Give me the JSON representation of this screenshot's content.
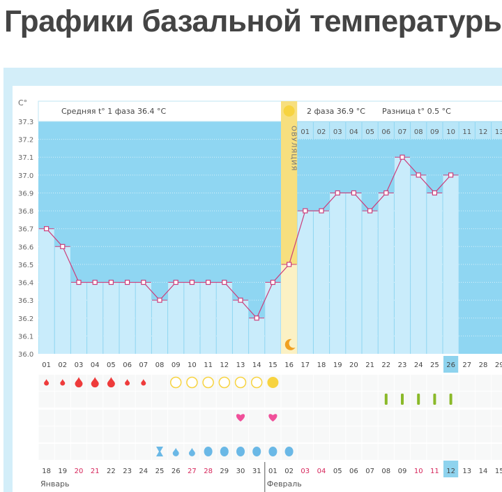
{
  "page_title": "Графики базальной температуры",
  "chart_data": {
    "type": "bar",
    "ylabel": "C°",
    "ylim": [
      36.0,
      37.3
    ],
    "yticks": [
      "37.3",
      "37.2",
      "37.1",
      "37.0",
      "36.9",
      "36.8",
      "36.7",
      "36.6",
      "36.5",
      "36.4",
      "36.3",
      "36.2",
      "36.1",
      "36.0"
    ],
    "grid": true,
    "cycle_days": [
      "01",
      "02",
      "03",
      "04",
      "05",
      "06",
      "07",
      "08",
      "09",
      "10",
      "11",
      "12",
      "13",
      "14",
      "15",
      "16",
      "17",
      "18",
      "19",
      "20",
      "21",
      "22",
      "23",
      "24",
      "25",
      "26",
      "27",
      "28",
      "29"
    ],
    "current_cycle_day": 26,
    "temperatures": [
      36.7,
      36.6,
      36.4,
      36.4,
      36.4,
      36.4,
      36.4,
      36.3,
      36.4,
      36.4,
      36.4,
      36.4,
      36.3,
      36.2,
      36.4,
      36.5,
      36.8,
      36.8,
      36.9,
      36.9,
      36.8,
      36.9,
      37.1,
      37.0,
      36.9,
      37.0
    ],
    "ovulation_day": 16,
    "ovulation_label": "ОВУЛЯЦИЯ",
    "phase1_label": "Средняя t° 1 фаза 36.4 °C",
    "phase2_label": "2 фаза 36.9 °C",
    "difference_label": "Разница t° 0.5 °C",
    "phase2_days": [
      "01",
      "02",
      "03",
      "04",
      "05",
      "06",
      "07",
      "08",
      "09",
      "10",
      "11",
      "12",
      "13"
    ],
    "calendar_dates": [
      "18",
      "19",
      "20",
      "21",
      "22",
      "23",
      "24",
      "25",
      "26",
      "27",
      "28",
      "29",
      "30",
      "31",
      "01",
      "02",
      "03",
      "04",
      "05",
      "06",
      "07",
      "08",
      "09",
      "10",
      "11",
      "12",
      "13",
      "14",
      "15"
    ],
    "weekend_dates_index": [
      2,
      3,
      9,
      10,
      16,
      17,
      23,
      24
    ],
    "today_index": 25,
    "months": [
      {
        "label": "Январь",
        "start_index": 0
      },
      {
        "label": "Февраль",
        "start_index": 14
      }
    ],
    "menstruation": {
      "days": [
        1,
        2,
        3,
        4,
        5,
        6,
        7
      ],
      "intensity": [
        "light",
        "light",
        "heavy",
        "heavy",
        "heavy",
        "light",
        "light"
      ]
    },
    "fertile_circles": {
      "empty_days": [
        9,
        10,
        11,
        12,
        13,
        14
      ],
      "filled_days": [
        15
      ]
    },
    "tests": {
      "days": [
        22,
        23,
        24,
        25,
        26
      ]
    },
    "intercourse": {
      "days": [
        13,
        15
      ]
    },
    "discharge": {
      "days": [
        8,
        9,
        10,
        11,
        12,
        13,
        14,
        15,
        16
      ],
      "kind": [
        "hourglass",
        "small",
        "small",
        "round",
        "round",
        "round",
        "round",
        "round",
        "round"
      ]
    },
    "colors": {
      "phase_bg": "#8fd6f2",
      "bar": "#c9ecfb",
      "line": "#cc3d7a",
      "ovulation": "#f7df7e",
      "ovulation_light": "#fbf1c4",
      "blood": "#ee3b3b",
      "sun": "#f7d340",
      "test": "#8ab929",
      "heart": "#f0509a",
      "drop": "#6ab8e6",
      "weekend": "#d6245a",
      "today": "#8ed3ee"
    }
  }
}
